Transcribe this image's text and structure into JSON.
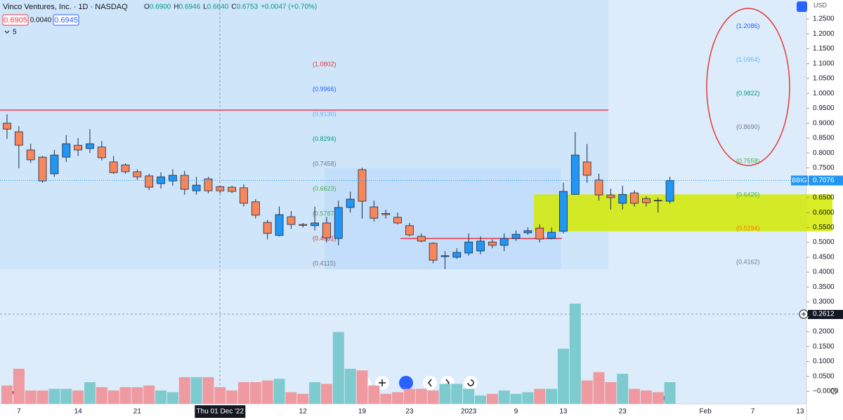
{
  "chart_data": {
    "type": "candlestick",
    "title": "Vinco Ventures, Inc. · 1D · NASDAQ",
    "ohlc_legend": [
      "O",
      "0.6900",
      "H",
      "0.6946",
      "L",
      "0.6640",
      "C",
      "0.6753",
      "+0.0047 (+0.70%)"
    ],
    "quote_boxes": [
      "0.6905",
      "0.0040",
      "0.6945"
    ],
    "indicator_count": "5",
    "currency": "USD",
    "categories": [
      null,
      "7",
      null,
      null,
      null,
      null,
      "14",
      null,
      null,
      null,
      null,
      "21",
      null,
      null,
      null,
      null,
      null,
      null,
      "Thu 01 Dec '22",
      null,
      null,
      null,
      null,
      null,
      null,
      "12",
      null,
      null,
      null,
      null,
      "19",
      null,
      null,
      null,
      "23",
      null,
      null,
      null,
      null,
      "2023",
      null,
      null,
      null,
      "9",
      null,
      null,
      null,
      "13",
      null,
      null,
      null,
      null,
      "23",
      null,
      null,
      null,
      null,
      null,
      null,
      "Feb",
      null,
      null,
      null,
      "7",
      null,
      null,
      null,
      "13"
    ],
    "open": [
      0.9,
      0.871,
      0.81,
      0.786,
      0.73,
      0.786,
      0.826,
      0.815,
      0.82,
      0.77,
      0.76,
      0.737,
      0.723,
      0.697,
      0.706,
      0.725,
      0.673,
      0.713,
      0.687,
      0.685,
      0.683,
      0.636,
      0.567,
      0.523,
      0.586,
      0.56,
      0.556,
      0.565,
      0.513,
      0.617,
      0.744,
      0.619,
      0.597,
      0.584,
      0.556,
      0.52,
      0.497,
      0.452,
      0.45,
      0.464,
      0.471,
      0.501,
      0.49,
      0.513,
      0.532,
      0.548,
      0.513,
      0.537,
      0.661,
      0.77,
      0.709,
      0.659,
      0.631,
      0.666,
      0.647,
      0.641,
      0.638,
      null,
      null,
      null,
      null,
      null,
      null,
      null,
      null,
      null,
      null,
      null
    ],
    "high": [
      0.93,
      0.89,
      0.831,
      0.79,
      0.81,
      0.86,
      0.85,
      0.88,
      0.84,
      0.79,
      0.765,
      0.745,
      0.73,
      0.735,
      0.745,
      0.74,
      0.72,
      0.72,
      0.69,
      0.69,
      0.695,
      0.645,
      0.575,
      0.62,
      0.605,
      0.565,
      0.62,
      0.585,
      0.64,
      0.67,
      0.75,
      0.64,
      0.61,
      0.6,
      0.565,
      0.53,
      0.5,
      0.47,
      0.48,
      0.53,
      0.52,
      0.51,
      0.53,
      0.54,
      0.55,
      0.56,
      0.55,
      0.7,
      0.87,
      0.83,
      0.73,
      0.68,
      0.69,
      0.675,
      0.655,
      0.65,
      0.72,
      null,
      null,
      null,
      null,
      null,
      null,
      null,
      null,
      null,
      null,
      null
    ],
    "low": [
      0.847,
      0.749,
      0.767,
      0.7,
      0.72,
      0.77,
      0.79,
      0.8,
      0.775,
      0.73,
      0.73,
      0.71,
      0.675,
      0.68,
      0.69,
      0.66,
      0.66,
      0.665,
      0.665,
      0.665,
      0.62,
      0.58,
      0.51,
      0.52,
      0.545,
      0.55,
      0.54,
      0.5,
      0.49,
      0.6,
      0.58,
      0.57,
      0.58,
      0.56,
      0.52,
      0.5,
      0.43,
      0.41,
      0.445,
      0.455,
      0.46,
      0.48,
      0.47,
      0.505,
      0.525,
      0.5,
      0.51,
      0.53,
      0.66,
      0.7,
      0.64,
      0.61,
      0.61,
      0.62,
      0.62,
      0.6,
      0.63,
      null,
      null,
      null,
      null,
      null,
      null,
      null,
      null,
      null,
      null,
      null
    ],
    "close": [
      0.88,
      0.826,
      0.777,
      0.706,
      0.793,
      0.831,
      0.81,
      0.831,
      0.784,
      0.734,
      0.737,
      0.72,
      0.685,
      0.72,
      0.725,
      0.678,
      0.692,
      0.673,
      0.673,
      0.671,
      0.631,
      0.591,
      0.53,
      0.593,
      0.56,
      0.557,
      0.565,
      0.515,
      0.617,
      0.645,
      0.638,
      0.581,
      0.593,
      0.565,
      0.525,
      0.504,
      0.44,
      0.455,
      0.466,
      0.501,
      0.504,
      0.49,
      0.513,
      0.527,
      0.539,
      0.511,
      0.534,
      0.671,
      0.793,
      0.725,
      0.659,
      0.65,
      0.661,
      0.631,
      0.633,
      0.64,
      0.7076,
      null,
      null,
      null,
      null,
      null,
      null,
      null,
      null,
      null,
      null,
      null
    ],
    "volume": [
      11,
      21,
      8,
      8,
      9,
      9,
      8,
      13,
      10,
      8,
      10,
      10,
      11,
      8,
      7,
      16,
      16,
      16,
      10,
      8,
      13,
      13,
      14,
      15,
      7,
      6,
      13,
      12,
      43,
      21,
      20,
      11,
      6,
      7,
      9,
      9,
      8,
      12,
      12,
      9,
      5,
      6,
      8,
      6,
      7,
      9,
      9,
      33,
      60,
      14,
      19,
      13,
      18,
      9,
      8,
      7,
      13,
      null,
      null,
      null,
      null,
      null,
      null,
      null,
      null,
      null,
      null,
      null
    ],
    "up_color": "#2196f3",
    "down_color": "#f7865a",
    "wick_color": "#1f2a44",
    "volume_up_color": "#7ecbcf",
    "volume_down_color": "#ef9aa0",
    "ylim": [
      -0.0424,
      1.3136
    ],
    "yticks": [
      {
        "value": 1.25,
        "label": "1.2500"
      },
      {
        "value": 1.2,
        "label": "1.2000"
      },
      {
        "value": 1.15,
        "label": "1.1500"
      },
      {
        "value": 1.1,
        "label": "1.1000"
      },
      {
        "value": 1.05,
        "label": "1.0500"
      },
      {
        "value": 1,
        "label": "1.0000"
      },
      {
        "value": 0.95,
        "label": "0.9500"
      },
      {
        "value": 0.9,
        "label": "0.9000"
      },
      {
        "value": 0.85,
        "label": "0.8500"
      },
      {
        "value": 0.8,
        "label": "0.8000"
      },
      {
        "value": 0.75,
        "label": "0.7500"
      },
      {
        "value": 0.7,
        "label": "0.7000"
      },
      {
        "value": 0.65,
        "label": "0.6500"
      },
      {
        "value": 0.6,
        "label": "0.6000"
      },
      {
        "value": 0.55,
        "label": "0.5500"
      },
      {
        "value": 0.5,
        "label": "0.5000"
      },
      {
        "value": 0.45,
        "label": "0.4500"
      },
      {
        "value": 0.4,
        "label": "0.4000"
      },
      {
        "value": 0.35,
        "label": "0.3500"
      },
      {
        "value": 0.3,
        "label": "0.3000"
      },
      {
        "value": 0.25,
        "label": "0.2500"
      },
      {
        "value": 0.2,
        "label": "0.2000"
      },
      {
        "value": 0.15,
        "label": "0.1500"
      },
      {
        "value": 0.1,
        "label": "0.1000"
      },
      {
        "value": 0.05,
        "label": "0.0500"
      },
      {
        "value": 0,
        "label": "−0.0000"
      }
    ],
    "last_price": {
      "symbol": "BBIG",
      "value": 0.7076,
      "color": "#2196f3"
    },
    "crosshair_price": 0.2612,
    "fib_left": [
      {
        "value": 1.0802,
        "label": "(1.0802)",
        "color": "#e53935"
      },
      {
        "value": 0.9966,
        "label": "(0.9966)",
        "color": "#2962ff"
      },
      {
        "value": 0.913,
        "label": "(0.9130)",
        "color": "#64b5f6"
      },
      {
        "value": 0.8294,
        "label": "(0.8294)",
        "color": "#089981"
      },
      {
        "value": 0.7458,
        "label": "(0.7458)",
        "color": "#787b86"
      },
      {
        "value": 0.6623,
        "label": "(0.6623)",
        "color": "#4caf50"
      },
      {
        "value": 0.5787,
        "label": "(0.5787)",
        "color": "#4caf50"
      },
      {
        "value": 0.4951,
        "label": "(0.4951)",
        "color": "#e53935"
      },
      {
        "value": 0.4115,
        "label": "(0.4115)",
        "color": "#787b86"
      }
    ],
    "fib_right": [
      {
        "value": 1.2086,
        "label": "(1.2086)",
        "color": "#2962ff"
      },
      {
        "value": 1.0954,
        "label": "(1.0954)",
        "color": "#64b5f6"
      },
      {
        "value": 0.9822,
        "label": "(0.9822)",
        "color": "#089981"
      },
      {
        "value": 0.869,
        "label": "(0.8690)",
        "color": "#787b86"
      },
      {
        "value": 0.7558,
        "label": "(0.7558)",
        "color": "#4caf50"
      },
      {
        "value": 0.6426,
        "label": "(0.6426)",
        "color": "#4caf50"
      },
      {
        "value": 0.5294,
        "label": "(0.5294)",
        "color": "#f57c00"
      },
      {
        "value": 0.4162,
        "label": "(0.4162)",
        "color": "#787b86"
      }
    ],
    "resistance": {
      "value": 0.944,
      "color": "#f23645"
    },
    "support": {
      "value": 0.513,
      "color": "#f23645"
    },
    "zone": {
      "top": 0.661,
      "bottom": 0.537,
      "color": "#d4ea00"
    }
  }
}
